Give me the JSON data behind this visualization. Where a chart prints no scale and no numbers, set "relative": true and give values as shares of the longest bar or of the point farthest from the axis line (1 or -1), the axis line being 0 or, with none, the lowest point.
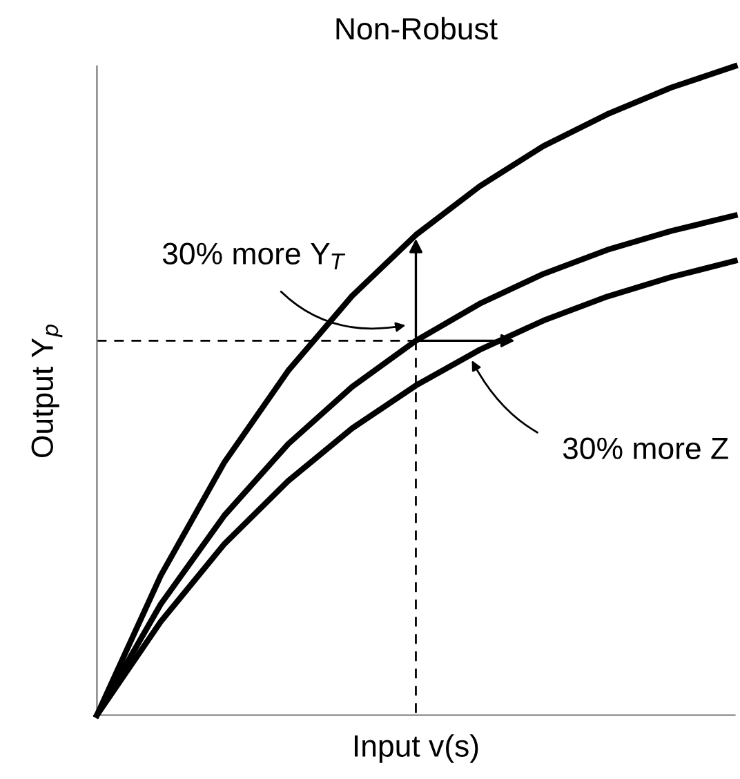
{
  "chart_data": {
    "type": "line",
    "relative": true,
    "title": "Non-Robust",
    "xlabel": "Input v(s)",
    "ylabel": "Output Y$_{p}$",
    "categories": [
      null,
      null,
      null,
      null,
      null,
      null,
      null,
      null,
      null,
      null,
      null
    ],
    "series": [
      {
        "color": "#000000",
        "values": [
          0,
          0.215,
          0.39,
          0.531,
          0.646,
          0.74,
          0.815,
          0.877,
          0.926,
          0.967,
          1.0
        ]
      },
      {
        "color": "#000000",
        "values": [
          0,
          0.171,
          0.308,
          0.418,
          0.506,
          0.577,
          0.634,
          0.68,
          0.717,
          0.746,
          0.77
        ]
      },
      {
        "color": "#000000",
        "values": [
          0,
          0.144,
          0.264,
          0.361,
          0.442,
          0.508,
          0.563,
          0.608,
          0.645,
          0.675,
          0.7
        ]
      },
      {
        "color": "#000000",
        "line_style": "dashed",
        "values": [
          0.577,
          0.577,
          0.577,
          0.577,
          0.577,
          0.577,
          null,
          null,
          null,
          null,
          null
        ]
      }
    ],
    "annotations": [
      "30% more Y$_{T}$",
      "30% more Z"
    ],
    "legend": false,
    "marker": "none"
  }
}
